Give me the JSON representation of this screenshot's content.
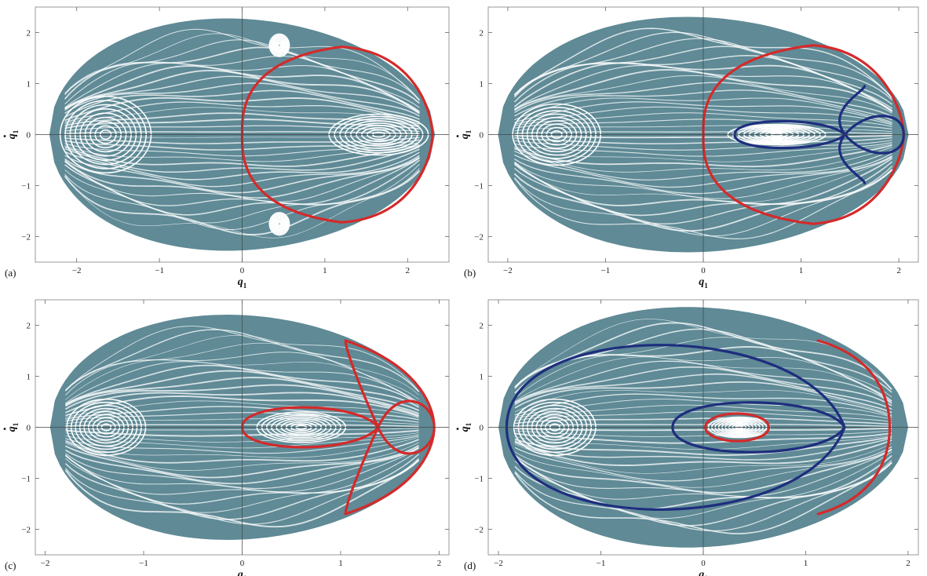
{
  "chart_data": [
    {
      "type": "scatter",
      "panel_label": "(a)",
      "xlabel": "q",
      "xlabel_sub": "1",
      "ylabel": "q",
      "ylabel_sub": "1",
      "ylabel_dot": true,
      "xlim": [
        -2.5,
        2.5
      ],
      "ylim": [
        -2.5,
        2.5
      ],
      "xticks": [
        -2,
        -1,
        0,
        1,
        2
      ],
      "yticks": [
        -2,
        -1,
        0,
        1,
        2
      ],
      "grid": false,
      "background_cloud": {
        "color": "#5f8a96",
        "q1_min": -2.33,
        "q1_max": 2.33,
        "pdot_max": 2.27
      },
      "islands": [
        {
          "q1": -1.65,
          "pdot": 0.0,
          "rx": 0.55,
          "ry": 0.75
        },
        {
          "q1": 1.65,
          "pdot": 0.0,
          "rx": 0.6,
          "ry": 0.4
        },
        {
          "q1": 0.45,
          "pdot": 1.75,
          "rx": 0.12,
          "ry": 0.22
        },
        {
          "q1": 0.45,
          "pdot": -1.75,
          "rx": 0.12,
          "ry": 0.22
        }
      ],
      "curves": [
        {
          "color": "#d42a2a",
          "kind": "arch",
          "q1_vertex": 0.0,
          "q1_tip": 1.2,
          "pdot_tip": 1.72,
          "q1_outer": 2.3
        }
      ]
    },
    {
      "type": "scatter",
      "panel_label": "(b)",
      "xlabel": "q",
      "xlabel_sub": "1",
      "ylabel": "q",
      "ylabel_sub": "1",
      "ylabel_dot": true,
      "xlim": [
        -2.2,
        2.2
      ],
      "ylim": [
        -2.5,
        2.5
      ],
      "xticks": [
        -2,
        -1,
        0,
        1,
        2
      ],
      "yticks": [
        -2,
        -1,
        0,
        1,
        2
      ],
      "grid": false,
      "background_cloud": {
        "color": "#5f8a96",
        "q1_min": -2.1,
        "q1_max": 2.1,
        "pdot_max": 2.3
      },
      "islands": [
        {
          "q1": -1.5,
          "pdot": 0.0,
          "rx": 0.45,
          "ry": 0.6
        },
        {
          "q1": 0.75,
          "pdot": 0.0,
          "rx": 0.5,
          "ry": 0.2
        }
      ],
      "curves": [
        {
          "color": "#d42a2a",
          "kind": "arch",
          "q1_vertex": 0.0,
          "q1_tip": 1.12,
          "pdot_tip": 1.75,
          "q1_outer": 2.05
        },
        {
          "color": "#1e2e7e",
          "kind": "separatrix",
          "q1_left": 0.32,
          "q1_x": 1.45,
          "q1_right": 2.05,
          "pdot_in": 0.35,
          "pdot_out": 0.95
        }
      ]
    },
    {
      "type": "scatter",
      "panel_label": "(c)",
      "xlabel": "q",
      "xlabel_sub": "1",
      "ylabel": "q",
      "ylabel_sub": "1",
      "ylabel_dot": true,
      "xlim": [
        -2.1,
        2.1
      ],
      "ylim": [
        -2.5,
        2.5
      ],
      "xticks": [
        -2,
        -1,
        0,
        1,
        2
      ],
      "yticks": [
        -2,
        -1,
        0,
        1,
        2
      ],
      "grid": false,
      "background_cloud": {
        "color": "#5f8a96",
        "q1_min": -1.95,
        "q1_max": 1.95,
        "pdot_max": 2.2
      },
      "islands": [
        {
          "q1": -1.38,
          "pdot": 0.0,
          "rx": 0.4,
          "ry": 0.55
        },
        {
          "q1": 0.6,
          "pdot": 0.0,
          "rx": 0.45,
          "ry": 0.3
        }
      ],
      "curves": [
        {
          "color": "#d42a2a",
          "kind": "separatrix",
          "q1_left": 0.0,
          "q1_x": 1.38,
          "q1_right": 1.95,
          "pdot_in": 0.52,
          "pdot_out": 1.7,
          "outer_tip": 1.05
        }
      ]
    },
    {
      "type": "scatter",
      "panel_label": "(d)",
      "xlabel": "q",
      "xlabel_sub": "1",
      "ylabel": "q",
      "ylabel_sub": "1",
      "ylabel_dot": true,
      "xlim": [
        -2.1,
        2.1
      ],
      "ylim": [
        -2.5,
        2.5
      ],
      "xticks": [
        -2,
        -1,
        0,
        1,
        2
      ],
      "yticks": [
        -2,
        -1,
        0,
        1,
        2
      ],
      "grid": false,
      "background_cloud": {
        "color": "#5f8a96",
        "q1_min": -2.0,
        "q1_max": 2.0,
        "pdot_max": 2.35
      },
      "islands": [
        {
          "q1": -1.45,
          "pdot": 0.0,
          "rx": 0.4,
          "ry": 0.55
        },
        {
          "q1": 0.35,
          "pdot": 0.0,
          "rx": 0.3,
          "ry": 0.2
        }
      ],
      "curves": [
        {
          "color": "#1e2e7e",
          "kind": "separatrix",
          "q1_left": -0.3,
          "q1_x": 1.38,
          "q1_right": 1.38,
          "pdot_in": 0.65,
          "pdot_out": 2.15,
          "outer_left": -1.92
        },
        {
          "color": "#d42a2a",
          "kind": "ellipse",
          "q1": 0.33,
          "pdot": 0.0,
          "rx": 0.31,
          "ry": 0.27
        },
        {
          "color": "#d42a2a",
          "kind": "arc",
          "q1_tip": 1.12,
          "pdot_tip": 1.7,
          "q1_outer": 1.82
        }
      ]
    }
  ]
}
